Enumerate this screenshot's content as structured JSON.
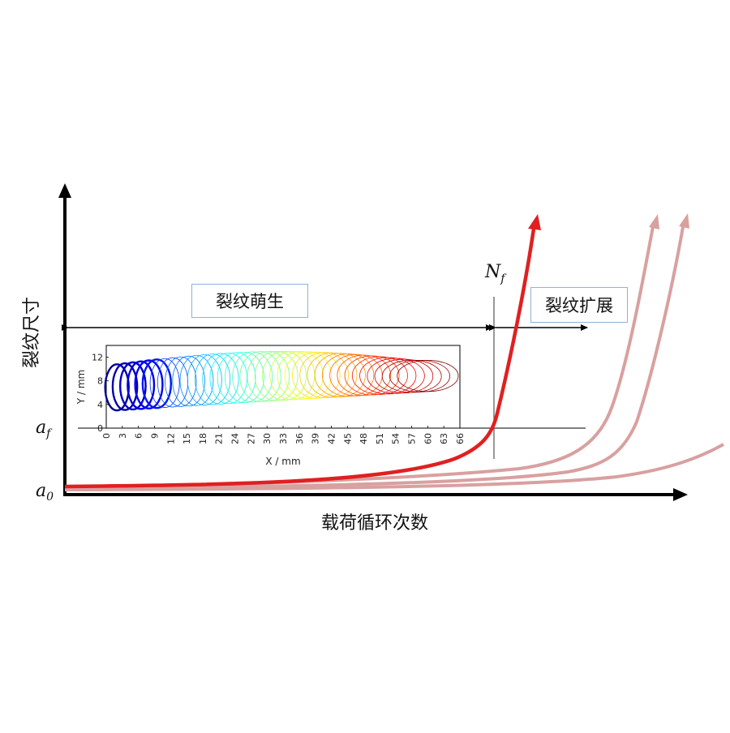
{
  "axes": {
    "y_label": "裂纹尺寸",
    "x_label": "载荷循环次数",
    "a0_label": "a",
    "a0_sub": "0",
    "af_label": "a",
    "af_sub": "f"
  },
  "markers": {
    "nf_label": "N",
    "nf_sub": "f"
  },
  "phases": {
    "initiation_label": "裂纹萌生",
    "propagation_label": "裂纹扩展"
  },
  "colors": {
    "main_curve": "#e02020",
    "faded_curve": "#d9a0a0",
    "axis": "#000000",
    "box_border": "#8fb2d6"
  },
  "inset": {
    "xlabel": "X / mm",
    "ylabel": "Y / mm",
    "xlim": [
      0,
      66
    ],
    "ylim": [
      0,
      14
    ],
    "x_ticks": [
      "0",
      "3",
      "6",
      "9",
      "12",
      "15",
      "18",
      "21",
      "24",
      "27",
      "30",
      "33",
      "36",
      "39",
      "42",
      "45",
      "48",
      "51",
      "54",
      "57",
      "60",
      "63",
      "66"
    ],
    "y_ticks": [
      "0",
      "4",
      "8",
      "12"
    ],
    "front_count": 40,
    "front_color_scale": "jet"
  }
}
